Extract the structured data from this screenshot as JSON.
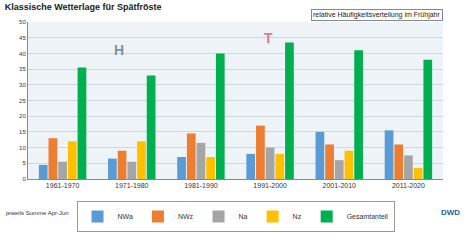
{
  "chart_data": {
    "type": "bar",
    "title": "Klassische Wetterlage für Spätfröste",
    "subtitle": "relative Häufigkeitsverteilung im Frühjahr",
    "annotations": [
      "jeweils Summe Apr-Jun",
      "H",
      "T",
      "DWD"
    ],
    "categories": [
      "1961-1970",
      "1971-1980",
      "1981-1990",
      "1991-2000",
      "2001-2010",
      "2011-2020"
    ],
    "series": [
      {
        "name": "NWa",
        "color": "#5b9bd5",
        "values": [
          4.5,
          6.5,
          7,
          8,
          15,
          15.5
        ]
      },
      {
        "name": "NWz",
        "color": "#ed7d31",
        "values": [
          13,
          9,
          14.5,
          17,
          11,
          11
        ]
      },
      {
        "name": "Na",
        "color": "#a5a5a5",
        "values": [
          5.5,
          5.5,
          11.5,
          10,
          6,
          7.5
        ]
      },
      {
        "name": "Nz",
        "color": "#ffc000",
        "values": [
          12,
          12,
          7,
          8,
          9,
          3.5
        ]
      },
      {
        "name": "Gesamtanteil",
        "color": "#00b050",
        "values": [
          35.5,
          33,
          40,
          43.5,
          41,
          38
        ]
      }
    ],
    "ylim": [
      0,
      50
    ],
    "yticks": [
      0,
      5,
      10,
      15,
      20,
      25,
      30,
      35,
      40,
      45,
      50
    ],
    "grid": true,
    "legend": "bottom"
  }
}
